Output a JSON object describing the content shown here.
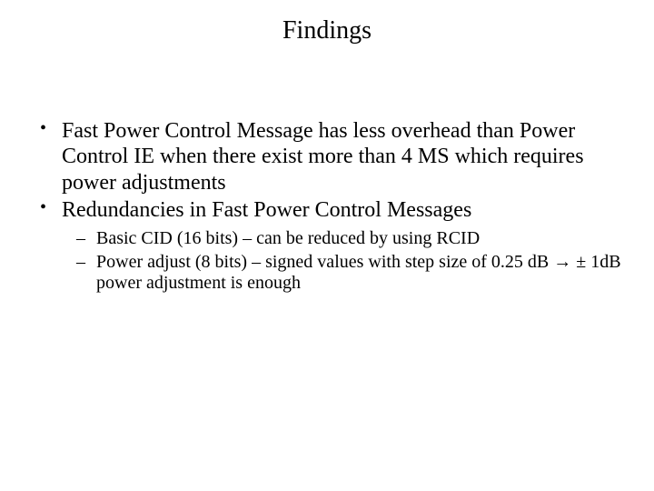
{
  "title": "Findings",
  "bullets": [
    {
      "text": "Fast Power Control Message has less overhead than Power Control IE when there exist more than 4 MS which requires power adjustments"
    },
    {
      "text": "Redundancies in Fast Power Control Messages",
      "sub": [
        "Basic CID (16 bits) – can be reduced by using RCID",
        "Power adjust (8 bits) – signed values with step size of 0.25 dB → ± 1dB power adjustment is enough"
      ]
    }
  ]
}
